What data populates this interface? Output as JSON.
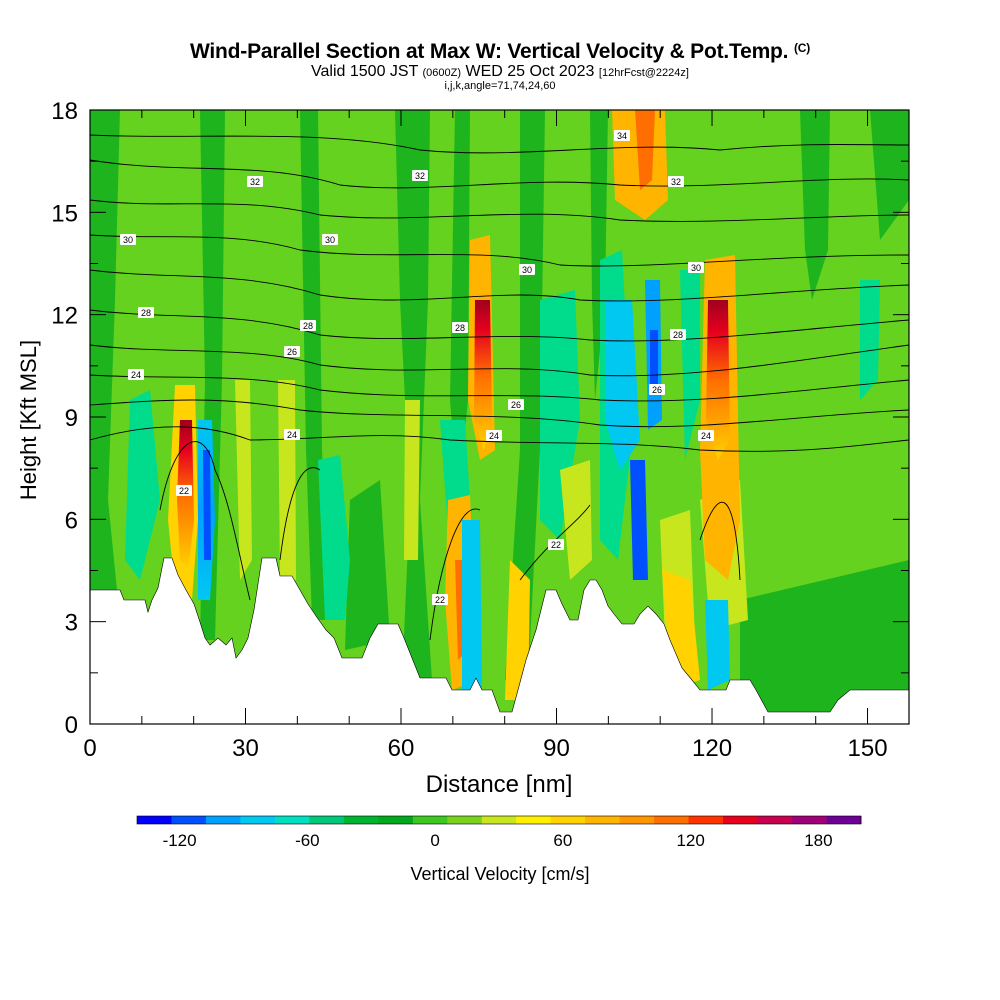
{
  "chart_data": {
    "type": "heatmap",
    "title": "Wind-Parallel Section at Max W: Vertical Velocity & Pot.Temp.",
    "title_mark": "(C)",
    "subtitle_valid": "Valid 1500 JST",
    "subtitle_utc": "(0600Z)",
    "subtitle_date": "WED 25 Oct 2023",
    "subtitle_fcst": "[12hrFcst@2224z]",
    "subtitle_indices": "i,j,k,angle=71,74,24,60",
    "xlabel": "Distance [nm]",
    "ylabel": "Height [Kft MSL]",
    "xlim": [
      0,
      158
    ],
    "ylim": [
      0,
      18
    ],
    "x_ticks": [
      0,
      30,
      60,
      90,
      120,
      150
    ],
    "y_ticks": [
      0,
      3,
      6,
      9,
      12,
      15,
      18
    ],
    "colorbar_label": "Vertical Velocity [cm/s]",
    "colorbar_ticks": [
      -120,
      -60,
      0,
      60,
      120,
      180
    ],
    "colorbar_range": [
      -140,
      200
    ],
    "colorbar_colors": [
      "#0000ff",
      "#0050ff",
      "#00a0ff",
      "#00c8f0",
      "#00e0c0",
      "#00c878",
      "#00b432",
      "#00a81e",
      "#3cc81e",
      "#78d21e",
      "#c8e61e",
      "#fff000",
      "#ffd200",
      "#ffb400",
      "#ff9600",
      "#ff6e00",
      "#ff3200",
      "#e6001e",
      "#c80050",
      "#a00078",
      "#6e0096"
    ],
    "theta_label_values": [
      32,
      32,
      32,
      34,
      30,
      30,
      30,
      30,
      28,
      28,
      28,
      28,
      26,
      26,
      26,
      24,
      24,
      24,
      24,
      22,
      22,
      22
    ]
  }
}
